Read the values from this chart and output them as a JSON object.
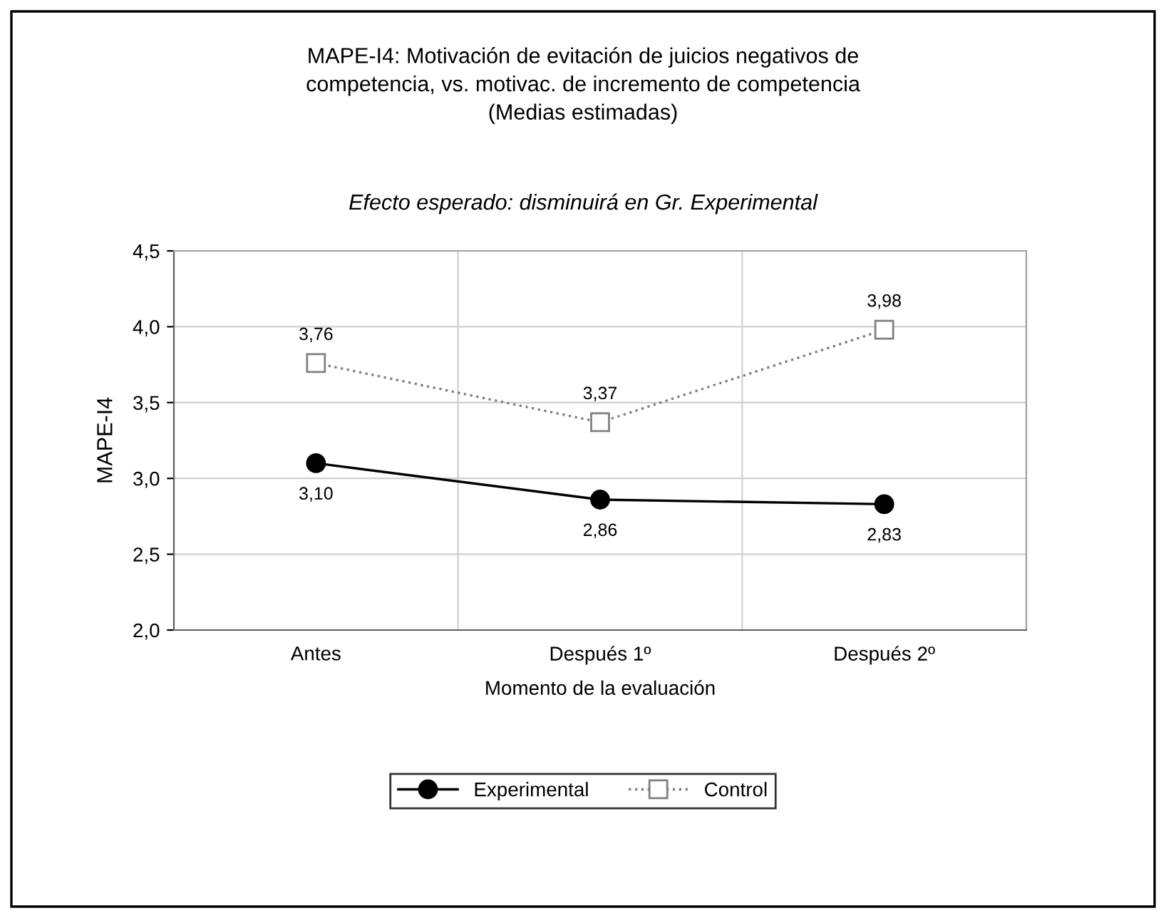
{
  "chart_data": {
    "type": "line",
    "title": "MAPE-I4: Motivación de evitación de juicios negativos de\ncompetencia, vs. motivac. de incremento de competencia\n(Medias estimadas)",
    "subtitle": "Efecto esperado: disminuirá en Gr. Experimental",
    "xlabel": "Momento de la evaluación",
    "ylabel": "MAPE-I4",
    "categories": [
      "Antes",
      "Después 1º",
      "Después 2º"
    ],
    "series": [
      {
        "name": "Experimental",
        "color": "#000000",
        "marker": "circle",
        "line_style": "solid",
        "values": [
          3.1,
          2.86,
          2.83
        ],
        "value_labels": [
          "3,10",
          "2,86",
          "2,83"
        ]
      },
      {
        "name": "Control",
        "color": "#808080",
        "marker": "square",
        "line_style": "dotted",
        "values": [
          3.76,
          3.37,
          3.98
        ],
        "value_labels": [
          "3,76",
          "3,37",
          "3,98"
        ]
      }
    ],
    "ylim": [
      2.0,
      4.5
    ],
    "yticks": [
      {
        "value": 2.0,
        "label": "2,0"
      },
      {
        "value": 2.5,
        "label": "2,5"
      },
      {
        "value": 3.0,
        "label": "3,0"
      },
      {
        "value": 3.5,
        "label": "3,5"
      },
      {
        "value": 4.0,
        "label": "4,0"
      },
      {
        "value": 4.5,
        "label": "4,5"
      }
    ],
    "grid": true,
    "legend": "bottom"
  }
}
